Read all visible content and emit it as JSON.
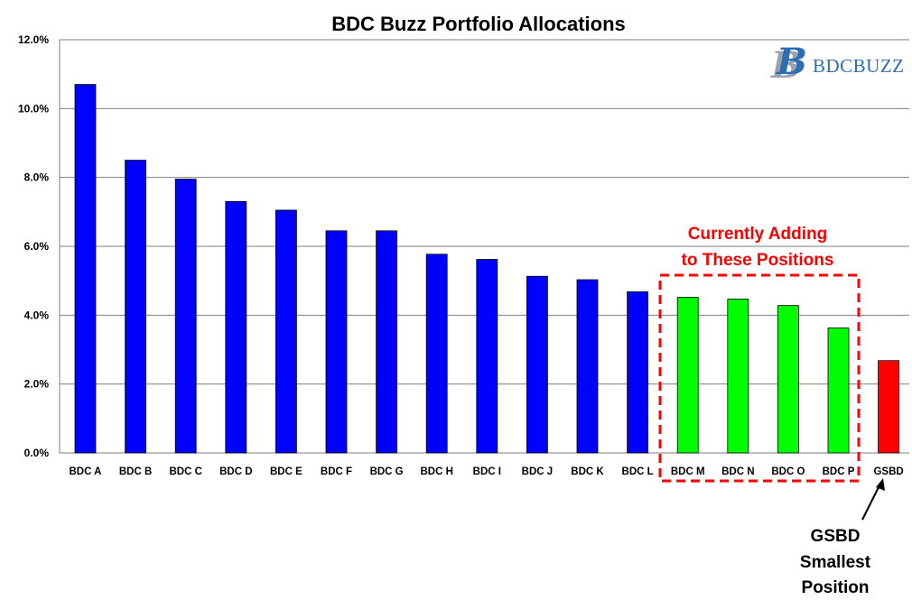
{
  "chart_data": {
    "type": "bar",
    "title": "BDC Buzz Portfolio Allocations",
    "xlabel": "",
    "ylabel": "",
    "ylim": [
      0,
      12
    ],
    "yticks": [
      "0.0%",
      "2.0%",
      "4.0%",
      "6.0%",
      "8.0%",
      "10.0%",
      "12.0%"
    ],
    "grid": true,
    "categories": [
      "BDC A",
      "BDC B",
      "BDC C",
      "BDC D",
      "BDC E",
      "BDC F",
      "BDC G",
      "BDC H",
      "BDC I",
      "BDC J",
      "BDC K",
      "BDC L",
      "BDC M",
      "BDC N",
      "BDC O",
      "BDC P",
      "GSBD"
    ],
    "values": [
      10.7,
      8.5,
      7.95,
      7.3,
      7.05,
      6.45,
      6.45,
      5.77,
      5.62,
      5.13,
      5.03,
      4.68,
      4.52,
      4.47,
      4.28,
      3.63,
      2.68
    ],
    "bar_colors": [
      "#0000ff",
      "#0000ff",
      "#0000ff",
      "#0000ff",
      "#0000ff",
      "#0000ff",
      "#0000ff",
      "#0000ff",
      "#0000ff",
      "#0000ff",
      "#0000ff",
      "#0000ff",
      "#00ff00",
      "#00ff00",
      "#00ff00",
      "#00ff00",
      "#ff0000"
    ],
    "annotations": {
      "adding_line1": "Currently Adding",
      "adding_line2": "to These Positions",
      "smallest_line1": "GSBD",
      "smallest_line2": "Smallest",
      "smallest_line3": "Position"
    }
  },
  "logo": {
    "mark": "B",
    "text": "BDCBUZZ"
  },
  "colors": {
    "primary_bar": "#0000ff",
    "adding_bar": "#00ff00",
    "smallest_bar": "#ff0000",
    "annotation_red": "#ff0000",
    "logo_blue": "#2e6db4"
  }
}
